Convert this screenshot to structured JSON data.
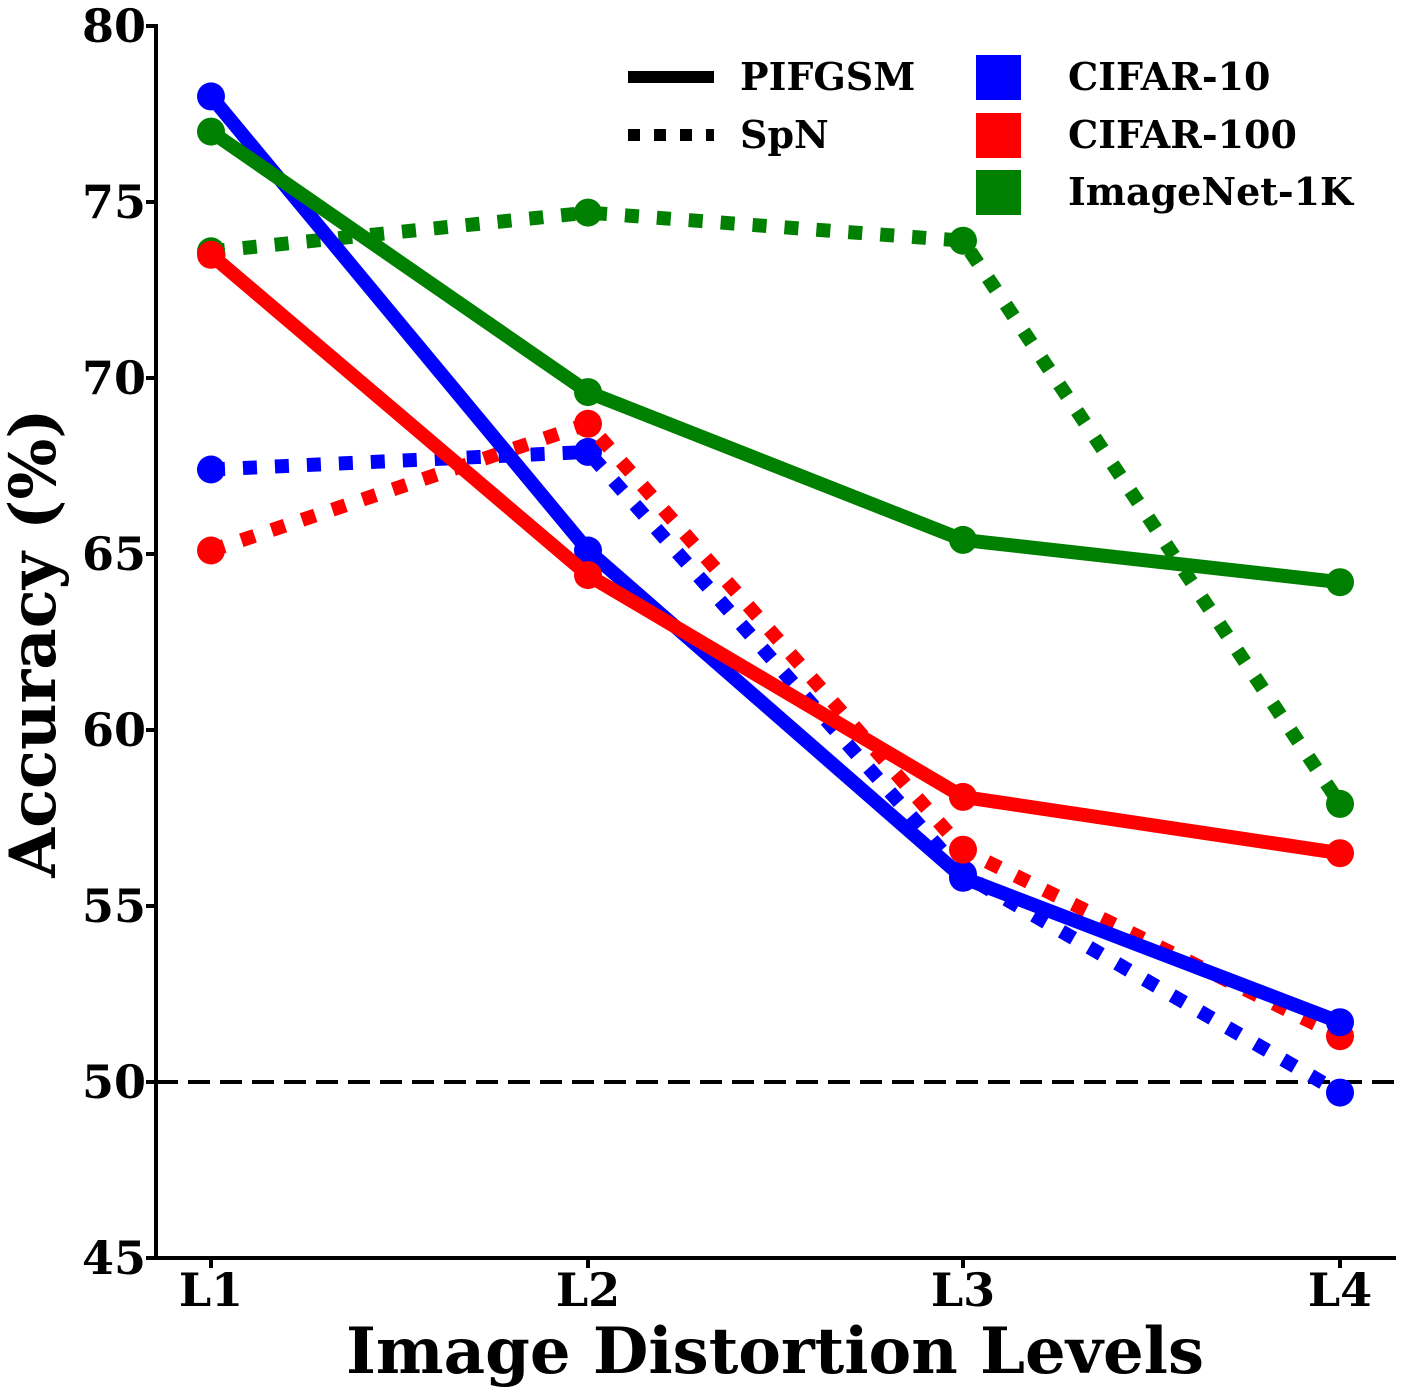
{
  "chart_data": {
    "type": "line",
    "title": "",
    "xlabel": "Image Distortion Levels",
    "ylabel": "Accuracy (%)",
    "categories": [
      "L1",
      "L2",
      "L3",
      "L4"
    ],
    "ylim": [
      45,
      80
    ],
    "yticks": [
      45,
      50,
      55,
      60,
      65,
      70,
      75,
      80
    ],
    "reference_line": {
      "y": 50,
      "style": "dashed",
      "color": "#000000"
    },
    "grid": false,
    "legend_position": "top-right",
    "methods": [
      {
        "name": "PIFGSM",
        "style": "solid"
      },
      {
        "name": "SpN",
        "style": "dotted"
      }
    ],
    "datasets": [
      {
        "name": "CIFAR-10",
        "color": "#0000ff"
      },
      {
        "name": "CIFAR-100",
        "color": "#ff0000"
      },
      {
        "name": "ImageNet-1K",
        "color": "#008000"
      }
    ],
    "series": [
      {
        "method": "PIFGSM",
        "dataset": "CIFAR-10",
        "color": "#0000ff",
        "style": "solid",
        "values": [
          78.0,
          65.1,
          55.8,
          51.7
        ]
      },
      {
        "method": "PIFGSM",
        "dataset": "CIFAR-100",
        "color": "#ff0000",
        "style": "solid",
        "values": [
          73.5,
          64.4,
          58.1,
          56.5
        ]
      },
      {
        "method": "PIFGSM",
        "dataset": "ImageNet-1K",
        "color": "#008000",
        "style": "solid",
        "values": [
          77.0,
          69.6,
          65.4,
          64.2
        ]
      },
      {
        "method": "SpN",
        "dataset": "CIFAR-10",
        "color": "#0000ff",
        "style": "dotted",
        "values": [
          67.4,
          67.9,
          55.9,
          49.7
        ]
      },
      {
        "method": "SpN",
        "dataset": "CIFAR-100",
        "color": "#ff0000",
        "style": "dotted",
        "values": [
          65.1,
          68.7,
          56.6,
          51.3
        ]
      },
      {
        "method": "SpN",
        "dataset": "ImageNet-1K",
        "color": "#008000",
        "style": "dotted",
        "values": [
          73.6,
          74.7,
          73.9,
          57.9
        ]
      }
    ]
  }
}
